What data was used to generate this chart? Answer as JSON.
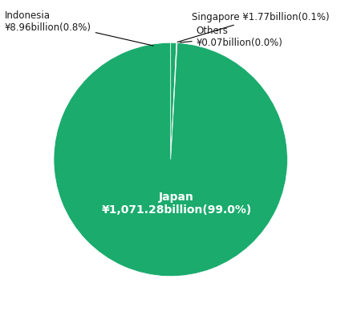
{
  "slices": [
    {
      "label": "Japan",
      "value": 99.0,
      "color": "#1aab6d",
      "text_color": "#ffffff",
      "inner_label": "Japan\n¥1,071.28billion(99.0%)"
    },
    {
      "label": "Indonesia",
      "value": 0.8,
      "color": "#1aab6d",
      "text_color": "#1a1a1a",
      "outer_label": "Indonesia\n¥8.96billion(0.8%)"
    },
    {
      "label": "Singapore",
      "value": 0.1,
      "color": "#e8702a",
      "text_color": "#1a1a1a",
      "outer_label": "Singapore ¥1.77billion(0.1%)"
    },
    {
      "label": "Others",
      "value": 0.0009,
      "color": "#f5f0e8",
      "text_color": "#1a1a1a",
      "outer_label": "Others\n¥0.07billion(0.0%)"
    }
  ],
  "background_color": "#ffffff",
  "startangle": 90,
  "figsize": [
    4.45,
    3.98
  ],
  "dpi": 100
}
